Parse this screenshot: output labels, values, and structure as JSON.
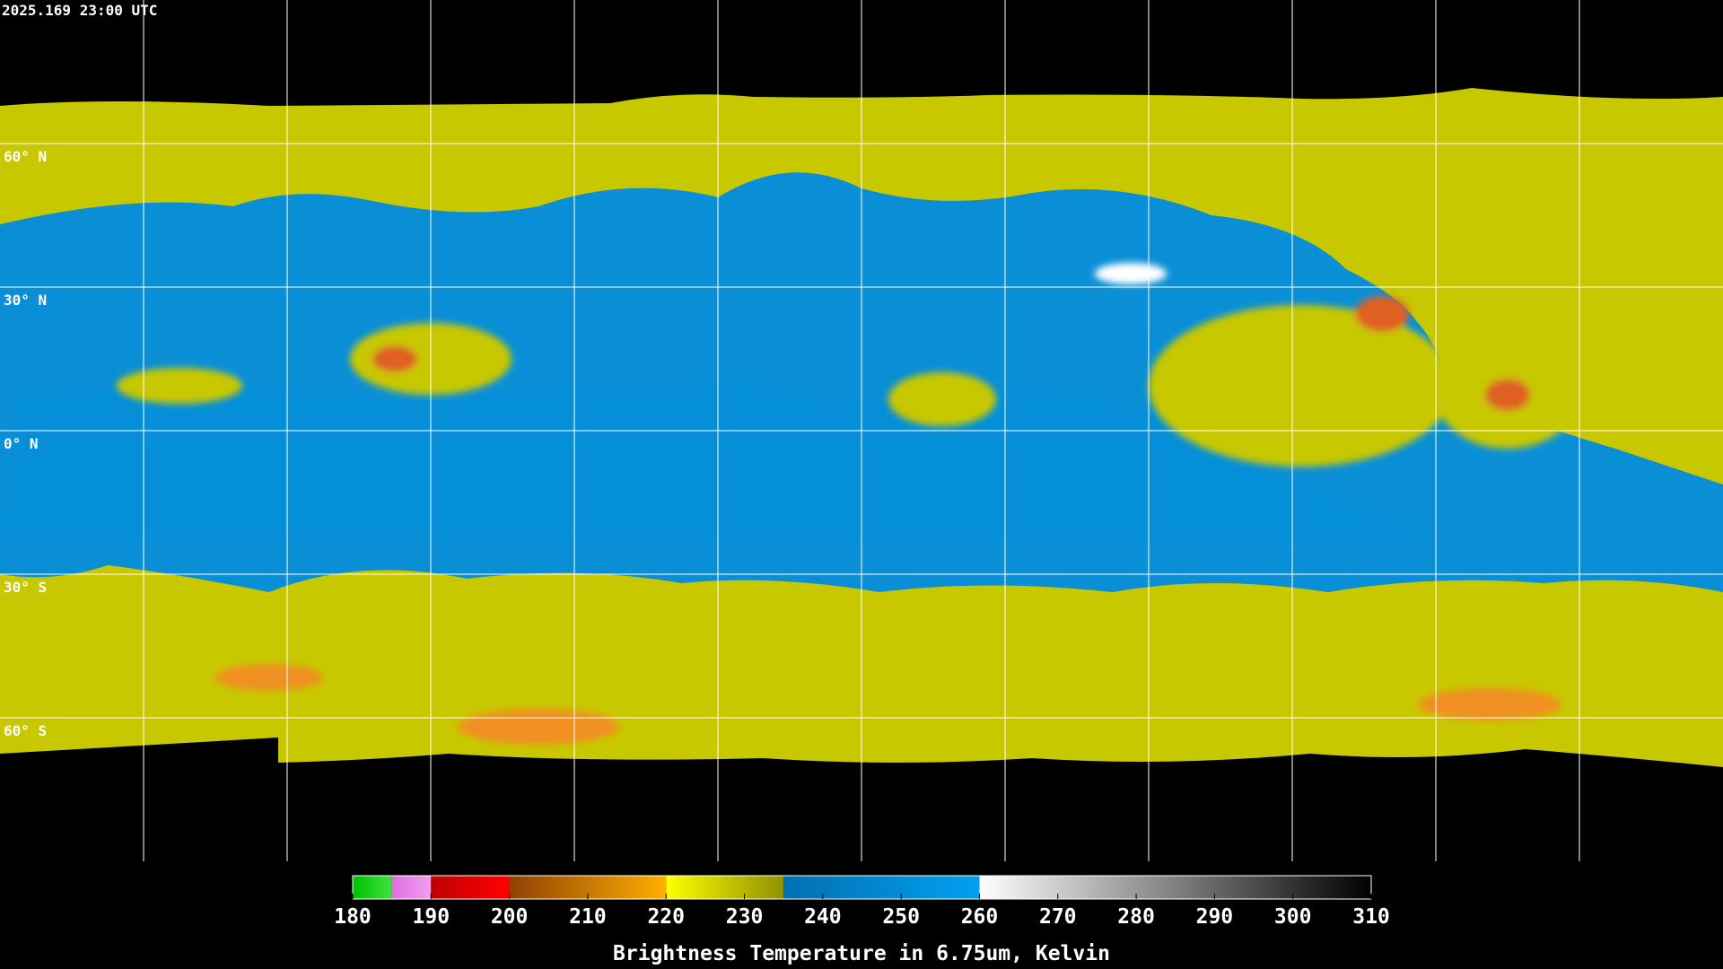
{
  "header": {
    "timestamp": "2025.169 23:00 UTC"
  },
  "map": {
    "lat_labels": [
      "60° N",
      "30° N",
      "0° N",
      "30° S",
      "60° S"
    ]
  },
  "colorbar": {
    "title": "Brightness Temperature in 6.75um, Kelvin",
    "range": [
      180,
      310
    ],
    "ticks": [
      180,
      190,
      200,
      210,
      220,
      230,
      240,
      250,
      260,
      270,
      280,
      290,
      300,
      310
    ],
    "segments": [
      {
        "from": 180,
        "to": 185,
        "colors": [
          "#00c000",
          "#40e040"
        ]
      },
      {
        "from": 185,
        "to": 190,
        "colors": [
          "#e070e0",
          "#f0a0f0"
        ]
      },
      {
        "from": 190,
        "to": 200,
        "colors": [
          "#c00000",
          "#ff0000"
        ]
      },
      {
        "from": 200,
        "to": 220,
        "colors": [
          "#904000",
          "#ffb000"
        ]
      },
      {
        "from": 220,
        "to": 235,
        "colors": [
          "#ffff00",
          "#909000"
        ]
      },
      {
        "from": 235,
        "to": 260,
        "colors": [
          "#0070b0",
          "#00a0f0"
        ]
      },
      {
        "from": 260,
        "to": 310,
        "colors": [
          "#ffffff",
          "#000000"
        ]
      }
    ]
  }
}
